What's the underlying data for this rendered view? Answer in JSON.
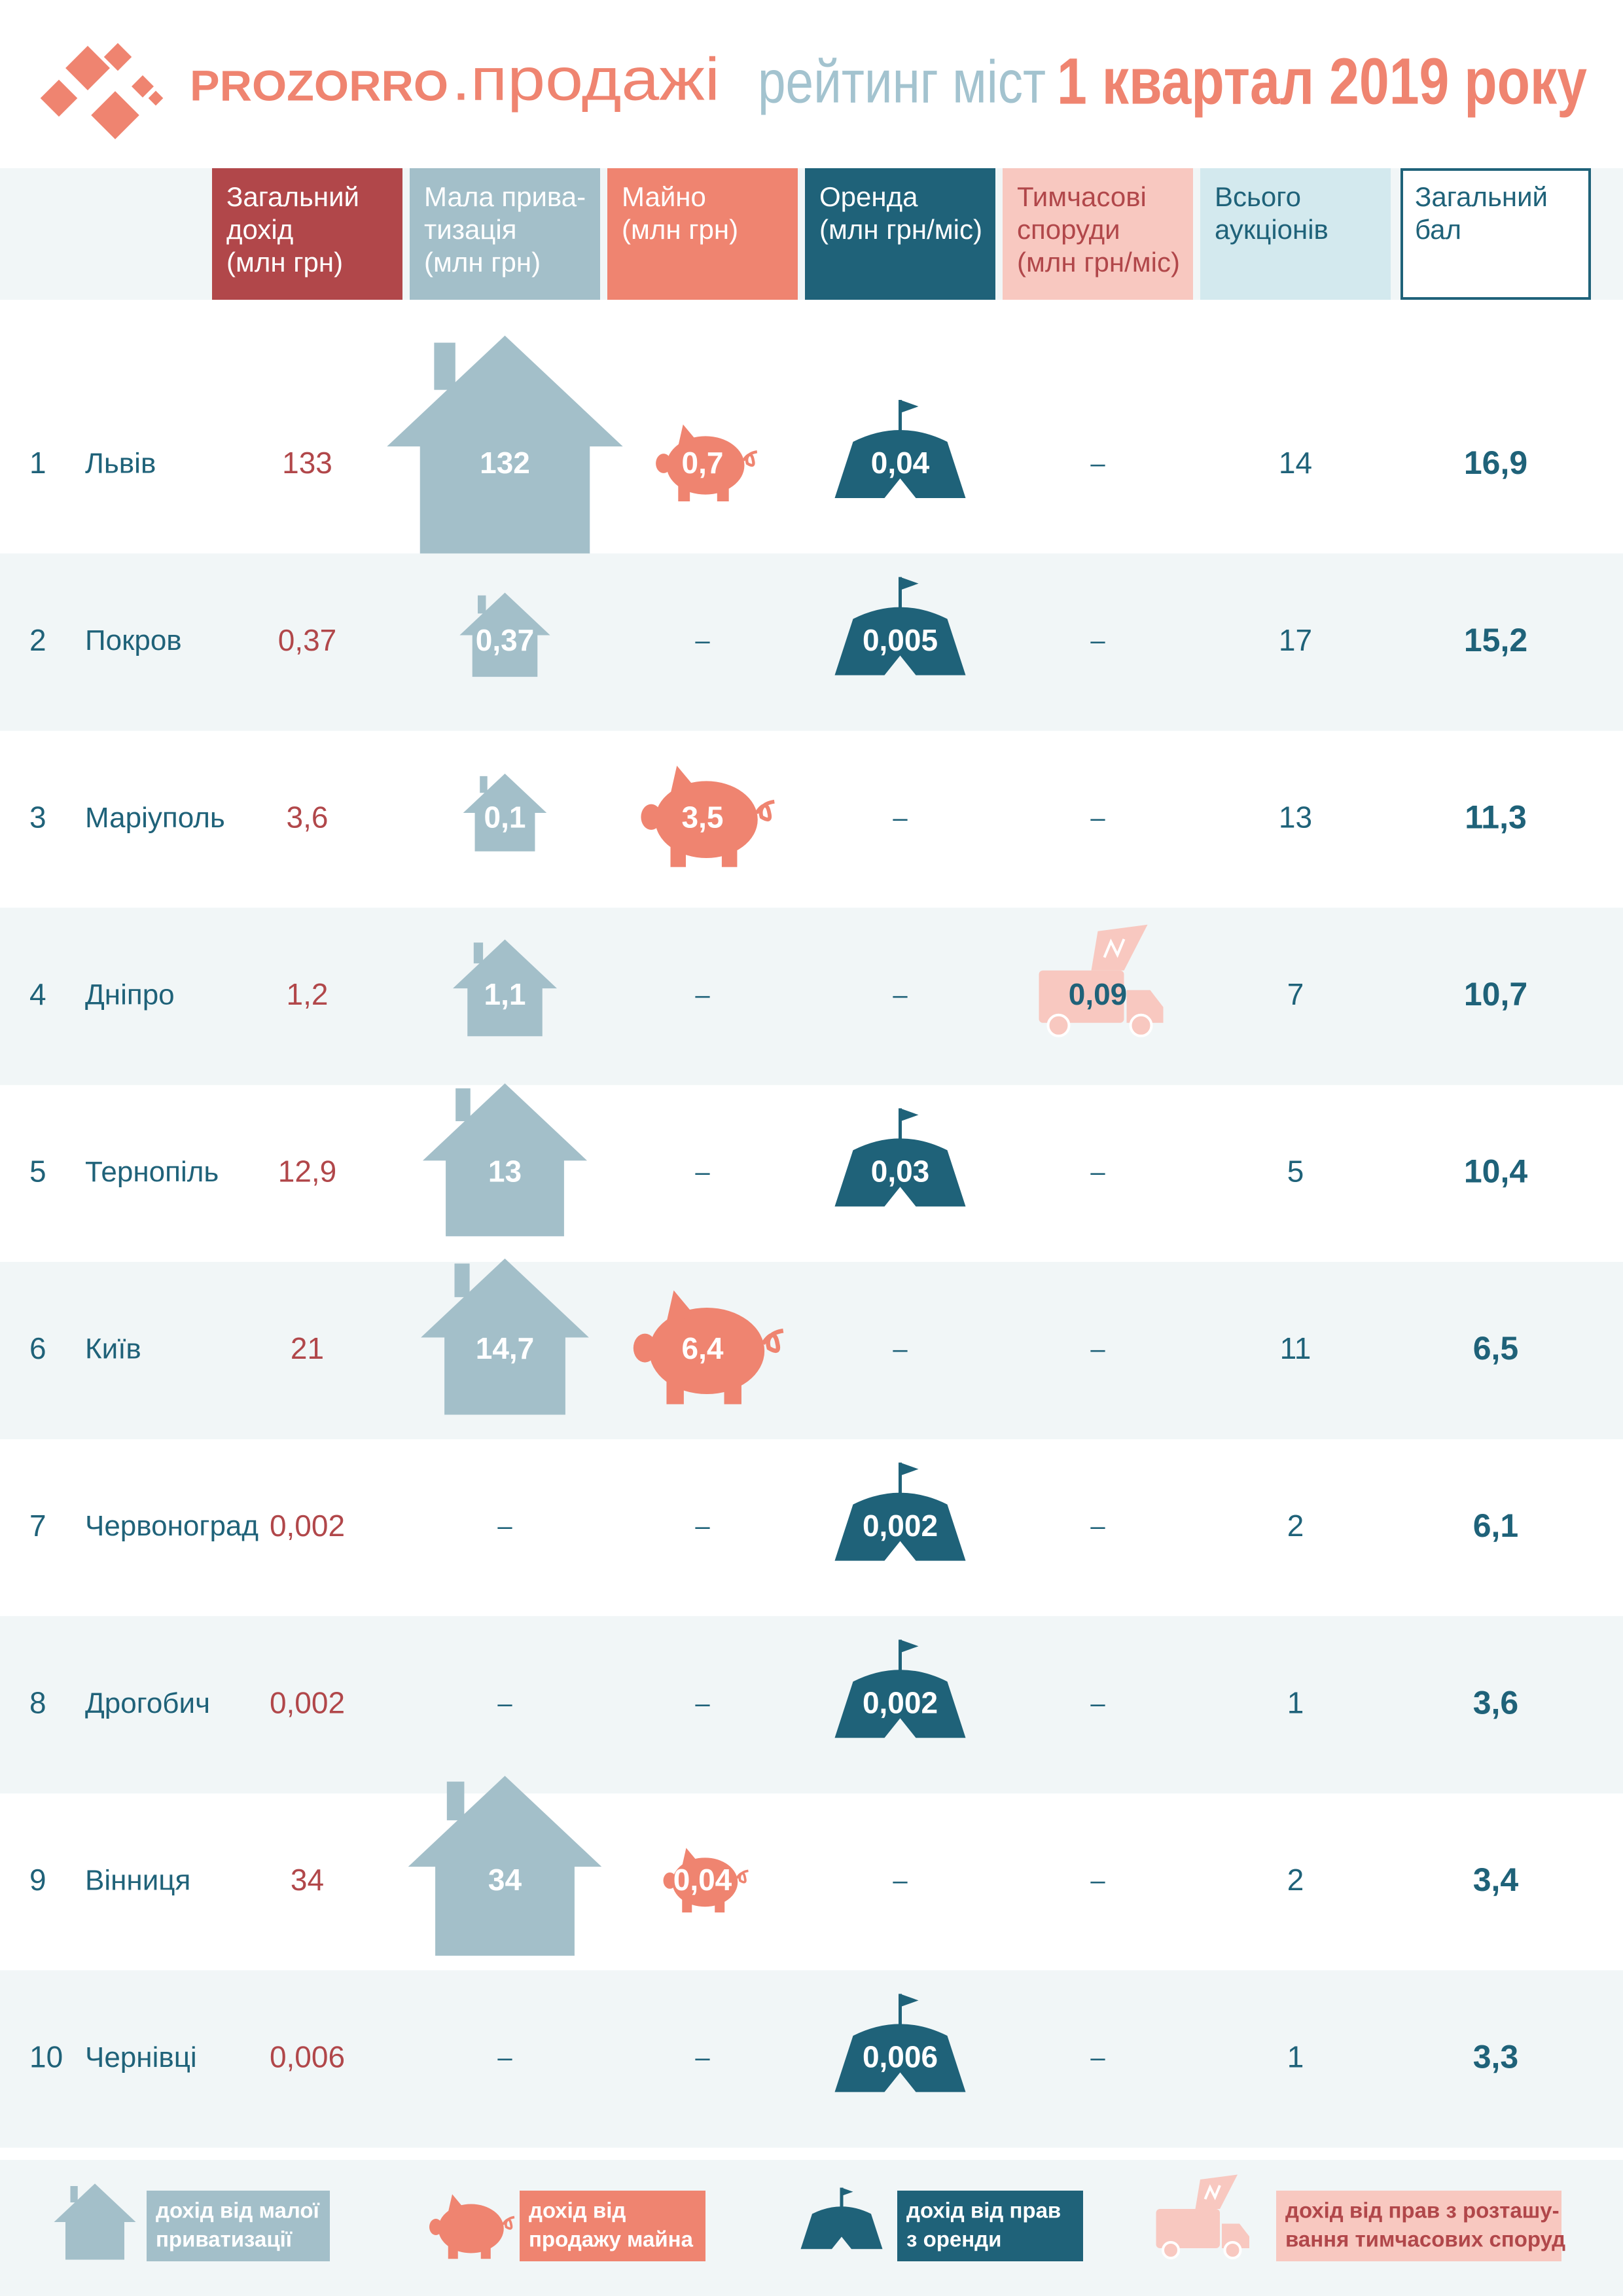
{
  "header": {
    "brand": "PROZORRO",
    "brand_suffix": ".продажі",
    "title": "рейтинг міст",
    "title_period": "1 квартал 2019 року"
  },
  "table": {
    "columns": [
      [
        "Загальний",
        "дохід",
        "(млн грн)"
      ],
      [
        "Мала прива-",
        "тизація",
        "(млн грн)"
      ],
      [
        "Майно",
        "(млн грн)"
      ],
      [
        "Оренда",
        "(млн грн/міс)"
      ],
      [
        "Тимчасові",
        "споруди",
        "(млн грн/міс)"
      ],
      [
        "Всього",
        "аукціонів"
      ],
      [
        "Загальний",
        "бал"
      ]
    ],
    "rows": [
      [
        "1",
        "Львів",
        "133",
        "132",
        "0,7",
        "0,04",
        "–",
        "14",
        "16,9"
      ],
      [
        "2",
        "Покров",
        "0,37",
        "0,37",
        "–",
        "0,005",
        "–",
        "17",
        "15,2"
      ],
      [
        "3",
        "Маріуполь",
        "3,6",
        "0,1",
        "3,5",
        "–",
        "–",
        "13",
        "11,3"
      ],
      [
        "4",
        "Дніпро",
        "1,2",
        "1,1",
        "–",
        "–",
        "0,09",
        "7",
        "10,7"
      ],
      [
        "5",
        "Тернопіль",
        "12,9",
        "13",
        "–",
        "0,03",
        "–",
        "5",
        "10,4"
      ],
      [
        "6",
        "Київ",
        "21",
        "14,7",
        "6,4",
        "–",
        "–",
        "11",
        "6,5"
      ],
      [
        "7",
        "Червоноград",
        "0,002",
        "–",
        "–",
        "0,002",
        "–",
        "2",
        "6,1"
      ],
      [
        "8",
        "Дрогобич",
        "0,002",
        "–",
        "–",
        "0,002",
        "–",
        "1",
        "3,6"
      ],
      [
        "9",
        "Вінниця",
        "34",
        "34",
        "0,04",
        "–",
        "–",
        "2",
        "3,4"
      ],
      [
        "10",
        "Чернівці",
        "0,006",
        "–",
        "–",
        "0,006",
        "–",
        "1",
        "3,3"
      ]
    ]
  },
  "legend": [
    [
      "дохід від малої",
      "приватизації"
    ],
    [
      "дохід від",
      "продажу майна"
    ],
    [
      "дохід від прав",
      "з оренди"
    ],
    [
      "дохід від прав з розташу-",
      "вання тимчасових споруд"
    ]
  ]
}
